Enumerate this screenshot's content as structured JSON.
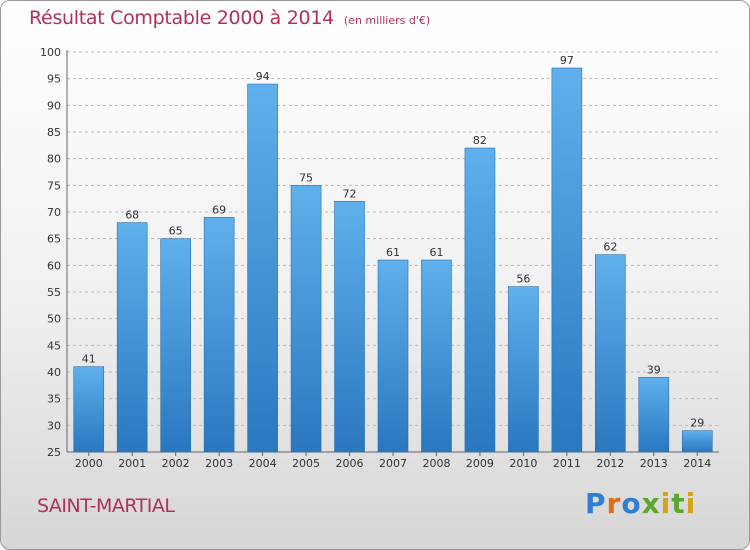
{
  "chart_data": {
    "type": "bar",
    "title": "Résultat Comptable 2000 à 2014",
    "subtitle": "(en milliers d'€)",
    "categories": [
      "2000",
      "2001",
      "2002",
      "2003",
      "2004",
      "2005",
      "2006",
      "2007",
      "2008",
      "2009",
      "2010",
      "2011",
      "2012",
      "2013",
      "2014"
    ],
    "values": [
      41,
      68,
      65,
      69,
      94,
      75,
      72,
      61,
      61,
      82,
      56,
      97,
      62,
      39,
      29
    ],
    "ylim": [
      25,
      100
    ],
    "yticks": [
      25,
      30,
      35,
      40,
      45,
      50,
      55,
      60,
      65,
      70,
      75,
      80,
      85,
      90,
      95,
      100
    ],
    "grid": true,
    "bar_color": "#3d8fd6",
    "data_labels": true
  },
  "location": "SAINT-MARTIAL",
  "logo": {
    "letters": [
      "P",
      "r",
      "o",
      "x",
      "i",
      "t",
      "i"
    ]
  },
  "colors": {
    "title": "#b0305a",
    "bar_top": "#5fb0ec",
    "bar_bottom": "#2a77c0",
    "grid": "#bbbbbb"
  }
}
